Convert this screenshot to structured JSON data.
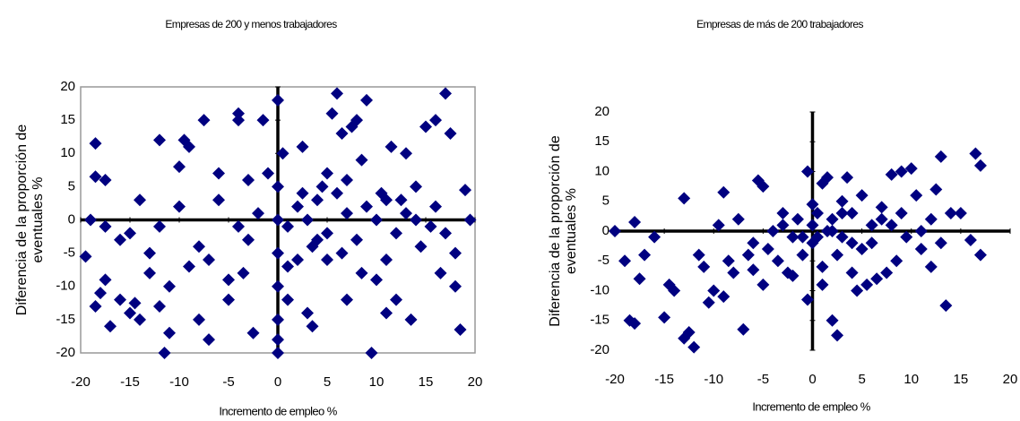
{
  "chart_data": [
    {
      "type": "scatter",
      "title": "Empresas de 200  y menos trabajadores",
      "x_label": "Incremento de empleo %",
      "y_label": [
        "Diferencia de la proporción de",
        "eventuales %"
      ],
      "color": "#000080",
      "frame": true,
      "xlim": [
        -20,
        20
      ],
      "xticks": [
        -20,
        -15,
        -10,
        -5,
        0,
        5,
        10,
        15,
        20
      ],
      "ylim": [
        -20,
        20
      ],
      "yticks": [
        20,
        15,
        10,
        5,
        0,
        -5,
        -10,
        -15,
        -20
      ],
      "x": [
        -19.5,
        -18.5,
        -18.5,
        -17.5,
        -17,
        -18,
        -18.5,
        -17.5,
        -16,
        -15,
        -14.5,
        -14,
        -13,
        -12,
        -12,
        -11.5,
        -11,
        -10,
        -9.5,
        -9,
        -8,
        -7.5,
        -7,
        -6,
        -5,
        -4,
        -4,
        -3.5,
        -3,
        -2.5,
        -1.5,
        -1,
        0,
        0,
        0,
        0,
        0,
        0,
        0,
        0,
        0.5,
        1,
        2,
        2.5,
        3,
        3.5,
        4,
        4.5,
        5,
        5.5,
        6,
        6.5,
        7,
        7.5,
        8,
        8.5,
        9,
        9.5,
        10,
        10.5,
        11,
        11.5,
        12,
        12.5,
        13,
        13.5,
        14,
        14.5,
        15,
        15.5,
        16,
        16.5,
        17,
        17.5,
        18,
        18.5,
        19,
        19.5,
        -19,
        -15,
        -12,
        -10,
        -8,
        -6,
        -4,
        -2,
        2,
        3,
        4,
        5,
        6,
        7,
        8,
        9,
        10,
        11,
        12,
        13,
        14,
        16,
        17,
        -16,
        -14,
        -9,
        -7,
        -5,
        -3,
        1,
        2.5,
        3.5,
        6.5,
        8.5,
        11,
        -13,
        -11,
        1,
        18,
        -17.5,
        5,
        7
      ],
      "values": [
        -5.5,
        11.5,
        6.5,
        6,
        -16,
        -11,
        -13,
        -9,
        -12,
        -14,
        -12.5,
        -15,
        -5,
        12,
        -13,
        -20,
        -17,
        8,
        12,
        11,
        -15,
        15,
        -18,
        7,
        -12,
        16,
        15,
        -8,
        6,
        -17,
        15,
        7,
        18,
        -18,
        -20,
        -15,
        -10,
        -5,
        0,
        5,
        10,
        -7,
        -6,
        11,
        -14,
        -16,
        -3,
        5,
        -6,
        16,
        19,
        13,
        -12,
        14,
        15,
        9,
        18,
        -20,
        -9,
        4,
        -14,
        11,
        -12,
        3,
        10,
        -15,
        5,
        -4,
        14,
        -1,
        15,
        -8,
        19,
        13,
        -5,
        -16.5,
        4.5,
        0,
        0,
        -2,
        -1,
        2,
        -4,
        3,
        -1,
        1,
        2,
        0,
        3,
        -2,
        4,
        1,
        -3,
        2,
        0,
        3,
        -2,
        1,
        0,
        2,
        -2,
        -3,
        3,
        -7,
        -6,
        -9,
        -3,
        -1,
        4,
        -4,
        -5,
        -8,
        -6,
        -8,
        -10,
        -12,
        -10,
        -1,
        7,
        6
      ]
    },
    {
      "type": "scatter",
      "title": "Empresas de más de 200 trabajadores",
      "x_label": "Incremento de empleo %",
      "y_label": [
        "Diferencia de la proporción de",
        "eventuales %"
      ],
      "color": "#000080",
      "frame": false,
      "xlim": [
        -20,
        20
      ],
      "xticks": [
        -20,
        -15,
        -10,
        -5,
        0,
        5,
        10,
        15,
        20
      ],
      "ylim": [
        -20,
        20
      ],
      "yticks": [
        20,
        15,
        10,
        5,
        0,
        -5,
        -10,
        -15,
        -20
      ],
      "x": [
        -20,
        -19,
        -18.5,
        -18,
        -18,
        -17.5,
        -17,
        -16,
        -15,
        -14.5,
        -14,
        -13,
        -13,
        -12.5,
        -12,
        -11.5,
        -11,
        -10.5,
        -10,
        -9.5,
        -9,
        -9,
        -8.5,
        -8,
        -7.5,
        -7,
        -6.5,
        -6,
        -5.5,
        -5,
        -5,
        -4.5,
        -4,
        -3.5,
        -3,
        -2.5,
        -2,
        -1.5,
        -1,
        -0.5,
        -0.5,
        0,
        0,
        0,
        0.5,
        0.5,
        1,
        1,
        1.5,
        1.5,
        2,
        2,
        2.5,
        2.5,
        3,
        3,
        3.5,
        4,
        4,
        4.5,
        5,
        5,
        5.5,
        6,
        6.5,
        7,
        7.5,
        8,
        8,
        8.5,
        9,
        9,
        9.5,
        10,
        10.5,
        11,
        11,
        12,
        12,
        12.5,
        13,
        13,
        13.5,
        14,
        15,
        16,
        16.5,
        17,
        17,
        -2,
        -3,
        1,
        6,
        3,
        -1,
        2,
        4,
        -6,
        7
      ],
      "values": [
        0,
        -5,
        -15,
        -15.5,
        1.5,
        -8,
        -4,
        -1,
        -14.5,
        -9,
        -10,
        5.5,
        -18,
        -17,
        -19.5,
        -4,
        -6,
        -12,
        -10,
        1,
        6.5,
        -11,
        -5,
        -7,
        2,
        -16.5,
        -4,
        -6.5,
        8.5,
        7.5,
        -9,
        -3,
        0,
        -5,
        3,
        -7,
        -1,
        2,
        -4,
        10,
        -11.5,
        1,
        -2,
        4.5,
        -1,
        3,
        -6,
        8,
        0,
        9,
        -15,
        2,
        -17.5,
        -4,
        5,
        -1,
        9,
        -7,
        3,
        -10,
        -3,
        6,
        -9,
        1,
        -8,
        4,
        -7,
        9.5,
        1,
        -5,
        3,
        10,
        -1,
        10.5,
        6,
        -3,
        0,
        2,
        -6,
        7,
        -2,
        12.5,
        -12.5,
        3,
        3,
        -1.5,
        13,
        11,
        -4,
        -7.5,
        1,
        -9,
        -2,
        3,
        -1,
        0,
        -2,
        -2,
        2
      ]
    }
  ]
}
